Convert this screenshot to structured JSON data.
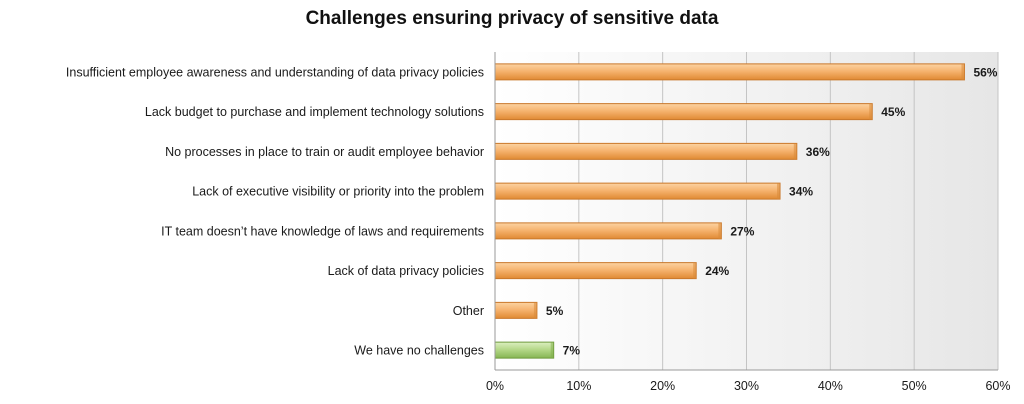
{
  "chart_data": {
    "type": "bar",
    "orientation": "horizontal",
    "title": "Challenges ensuring privacy of sensitive data",
    "xlabel": "",
    "ylabel": "",
    "xlim": [
      0,
      60
    ],
    "x_ticks": [
      "0%",
      "10%",
      "20%",
      "30%",
      "40%",
      "50%",
      "60%"
    ],
    "grid": "vertical",
    "legend": "none",
    "categories": [
      "Insufficient employee awareness and understanding of data privacy policies",
      "Lack budget to purchase and implement technology solutions",
      "No processes in place to train or audit employee behavior",
      "Lack of executive visibility or priority into the problem",
      "IT team doesn’t have knowledge of laws and requirements",
      "Lack of data privacy policies",
      "Other",
      "We have no challenges"
    ],
    "values": [
      56,
      45,
      36,
      34,
      27,
      24,
      5,
      7
    ],
    "data_labels": [
      "56%",
      "45%",
      "36%",
      "34%",
      "27%",
      "24%",
      "5%",
      "7%"
    ],
    "colors": [
      "#f2a14b",
      "#f2a14b",
      "#f2a14b",
      "#f2a14b",
      "#f2a14b",
      "#f2a14b",
      "#f2a14b",
      "#9bc46a"
    ]
  }
}
